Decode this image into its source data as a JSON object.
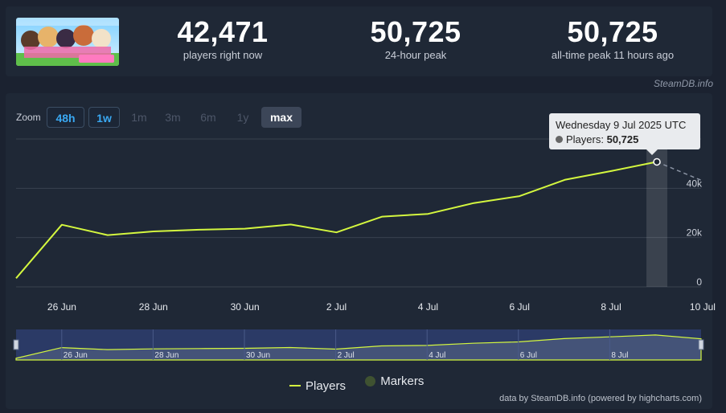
{
  "stats": [
    {
      "value": "42,471",
      "label": "players right now"
    },
    {
      "value": "50,725",
      "label": "24-hour peak"
    },
    {
      "value": "50,725",
      "label": "all-time peak 11 hours ago"
    }
  ],
  "credit_top": "SteamDB.info",
  "zoom": {
    "label": "Zoom",
    "buttons": [
      "48h",
      "1w",
      "1m",
      "3m",
      "6m",
      "1y",
      "max"
    ],
    "selected": "max"
  },
  "tooltip": {
    "date": "Wednesday 9 Jul 2025 UTC",
    "series": "Players",
    "value": "50,725"
  },
  "legend": {
    "players": "Players",
    "markers": "Markers"
  },
  "credit_bottom": "data by SteamDB.info (powered by highcharts.com)",
  "colors": {
    "series": "#d4f73f",
    "background": "#1b2230",
    "panel": "#1f2836",
    "accent": "#3aa8f2",
    "marker": "#3f5231"
  },
  "chart_data": {
    "type": "line",
    "x_unit": "days since 25 Jun 2025",
    "x_tick_labels": [
      "26 Jun",
      "28 Jun",
      "30 Jun",
      "2 Jul",
      "4 Jul",
      "6 Jul",
      "8 Jul",
      "10 Jul"
    ],
    "x_tick_values": [
      1,
      3,
      5,
      7,
      9,
      11,
      13,
      15
    ],
    "y_tick_labels": [
      "0",
      "20k",
      "40k"
    ],
    "y_tick_values": [
      0,
      20000,
      40000
    ],
    "ylim": [
      0,
      60000
    ],
    "xlim": [
      0,
      15
    ],
    "series": [
      {
        "name": "Players",
        "x": [
          0,
          1,
          2,
          3,
          4,
          5,
          6,
          7,
          8,
          9,
          10,
          11,
          12,
          13,
          14
        ],
        "values": [
          3500,
          25200,
          21000,
          22500,
          23200,
          23600,
          25300,
          22100,
          28500,
          29600,
          34000,
          36800,
          43500,
          47000,
          50725
        ]
      }
    ],
    "projection": {
      "x": [
        14,
        15
      ],
      "values": [
        50725,
        43000
      ]
    },
    "navigator_labels": [
      "26 Jun",
      "28 Jun",
      "30 Jun",
      "2 Jul",
      "4 Jul",
      "6 Jul",
      "8 Jul"
    ]
  }
}
